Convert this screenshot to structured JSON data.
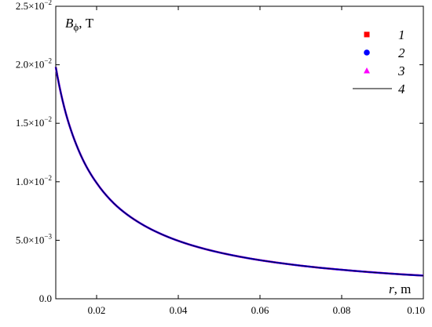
{
  "chart_data": {
    "type": "line",
    "xlabel": {
      "symbol": "r",
      "unit": ", m"
    },
    "ylabel": {
      "symbol": "B",
      "subscript": "ϕ",
      "unit": ", T"
    },
    "xlim": [
      0.01,
      0.1
    ],
    "ylim": [
      0,
      0.025
    ],
    "x_ticks": [
      {
        "value": 0.02,
        "label": "0.02"
      },
      {
        "value": 0.04,
        "label": "0.04"
      },
      {
        "value": 0.06,
        "label": "0.06"
      },
      {
        "value": 0.08,
        "label": "0.08"
      },
      {
        "value": 0.1,
        "label": "0.10"
      }
    ],
    "y_ticks": [
      {
        "value": 0.0,
        "mantissa": "0.0",
        "exp": ""
      },
      {
        "value": 0.005,
        "mantissa": "5.0×10",
        "exp": "−3"
      },
      {
        "value": 0.01,
        "mantissa": "1.0×10",
        "exp": "−2"
      },
      {
        "value": 0.015,
        "mantissa": "1.5×10",
        "exp": "−2"
      },
      {
        "value": 0.02,
        "mantissa": "2.0×10",
        "exp": "−2"
      },
      {
        "value": 0.025,
        "mantissa": "2.5×10",
        "exp": "−2"
      }
    ],
    "grid": false,
    "legend_position": "top-right",
    "x": [
      0.01,
      0.0125,
      0.015,
      0.0175,
      0.02,
      0.025,
      0.03,
      0.035,
      0.04,
      0.045,
      0.05,
      0.055,
      0.06,
      0.065,
      0.07,
      0.075,
      0.08,
      0.085,
      0.09,
      0.095,
      0.1
    ],
    "series": [
      {
        "name": "1",
        "marker": "square",
        "color": "#ff0000",
        "values": [
          0.0198,
          0.0158,
          0.0132,
          0.0113,
          0.0099,
          0.0079,
          0.0066,
          0.00566,
          0.00495,
          0.0044,
          0.00396,
          0.0036,
          0.0033,
          0.00305,
          0.00283,
          0.00264,
          0.00248,
          0.00233,
          0.0022,
          0.00208,
          0.00198
        ]
      },
      {
        "name": "2",
        "marker": "circle",
        "color": "#0000ff",
        "values": [
          0.0198,
          0.0158,
          0.0132,
          0.0113,
          0.0099,
          0.0079,
          0.0066,
          0.00566,
          0.00495,
          0.0044,
          0.00396,
          0.0036,
          0.0033,
          0.00305,
          0.00283,
          0.00264,
          0.00248,
          0.00233,
          0.0022,
          0.00208,
          0.00198
        ]
      },
      {
        "name": "3",
        "marker": "triangle",
        "color": "#ff00ff",
        "values": [
          0.0198,
          0.0158,
          0.0132,
          0.0113,
          0.0099,
          0.0079,
          0.0066,
          0.00566,
          0.00495,
          0.0044,
          0.00396,
          0.0036,
          0.0033,
          0.00305,
          0.00283,
          0.00264,
          0.00248,
          0.00233,
          0.0022,
          0.00208,
          0.00198
        ]
      },
      {
        "name": "4",
        "marker": "line",
        "color": "#000000",
        "values": [
          0.0198,
          0.0158,
          0.0132,
          0.0113,
          0.0099,
          0.0079,
          0.0066,
          0.00566,
          0.00495,
          0.0044,
          0.00396,
          0.0036,
          0.0033,
          0.00305,
          0.00283,
          0.00264,
          0.00248,
          0.00233,
          0.0022,
          0.00208,
          0.00198
        ]
      }
    ]
  }
}
